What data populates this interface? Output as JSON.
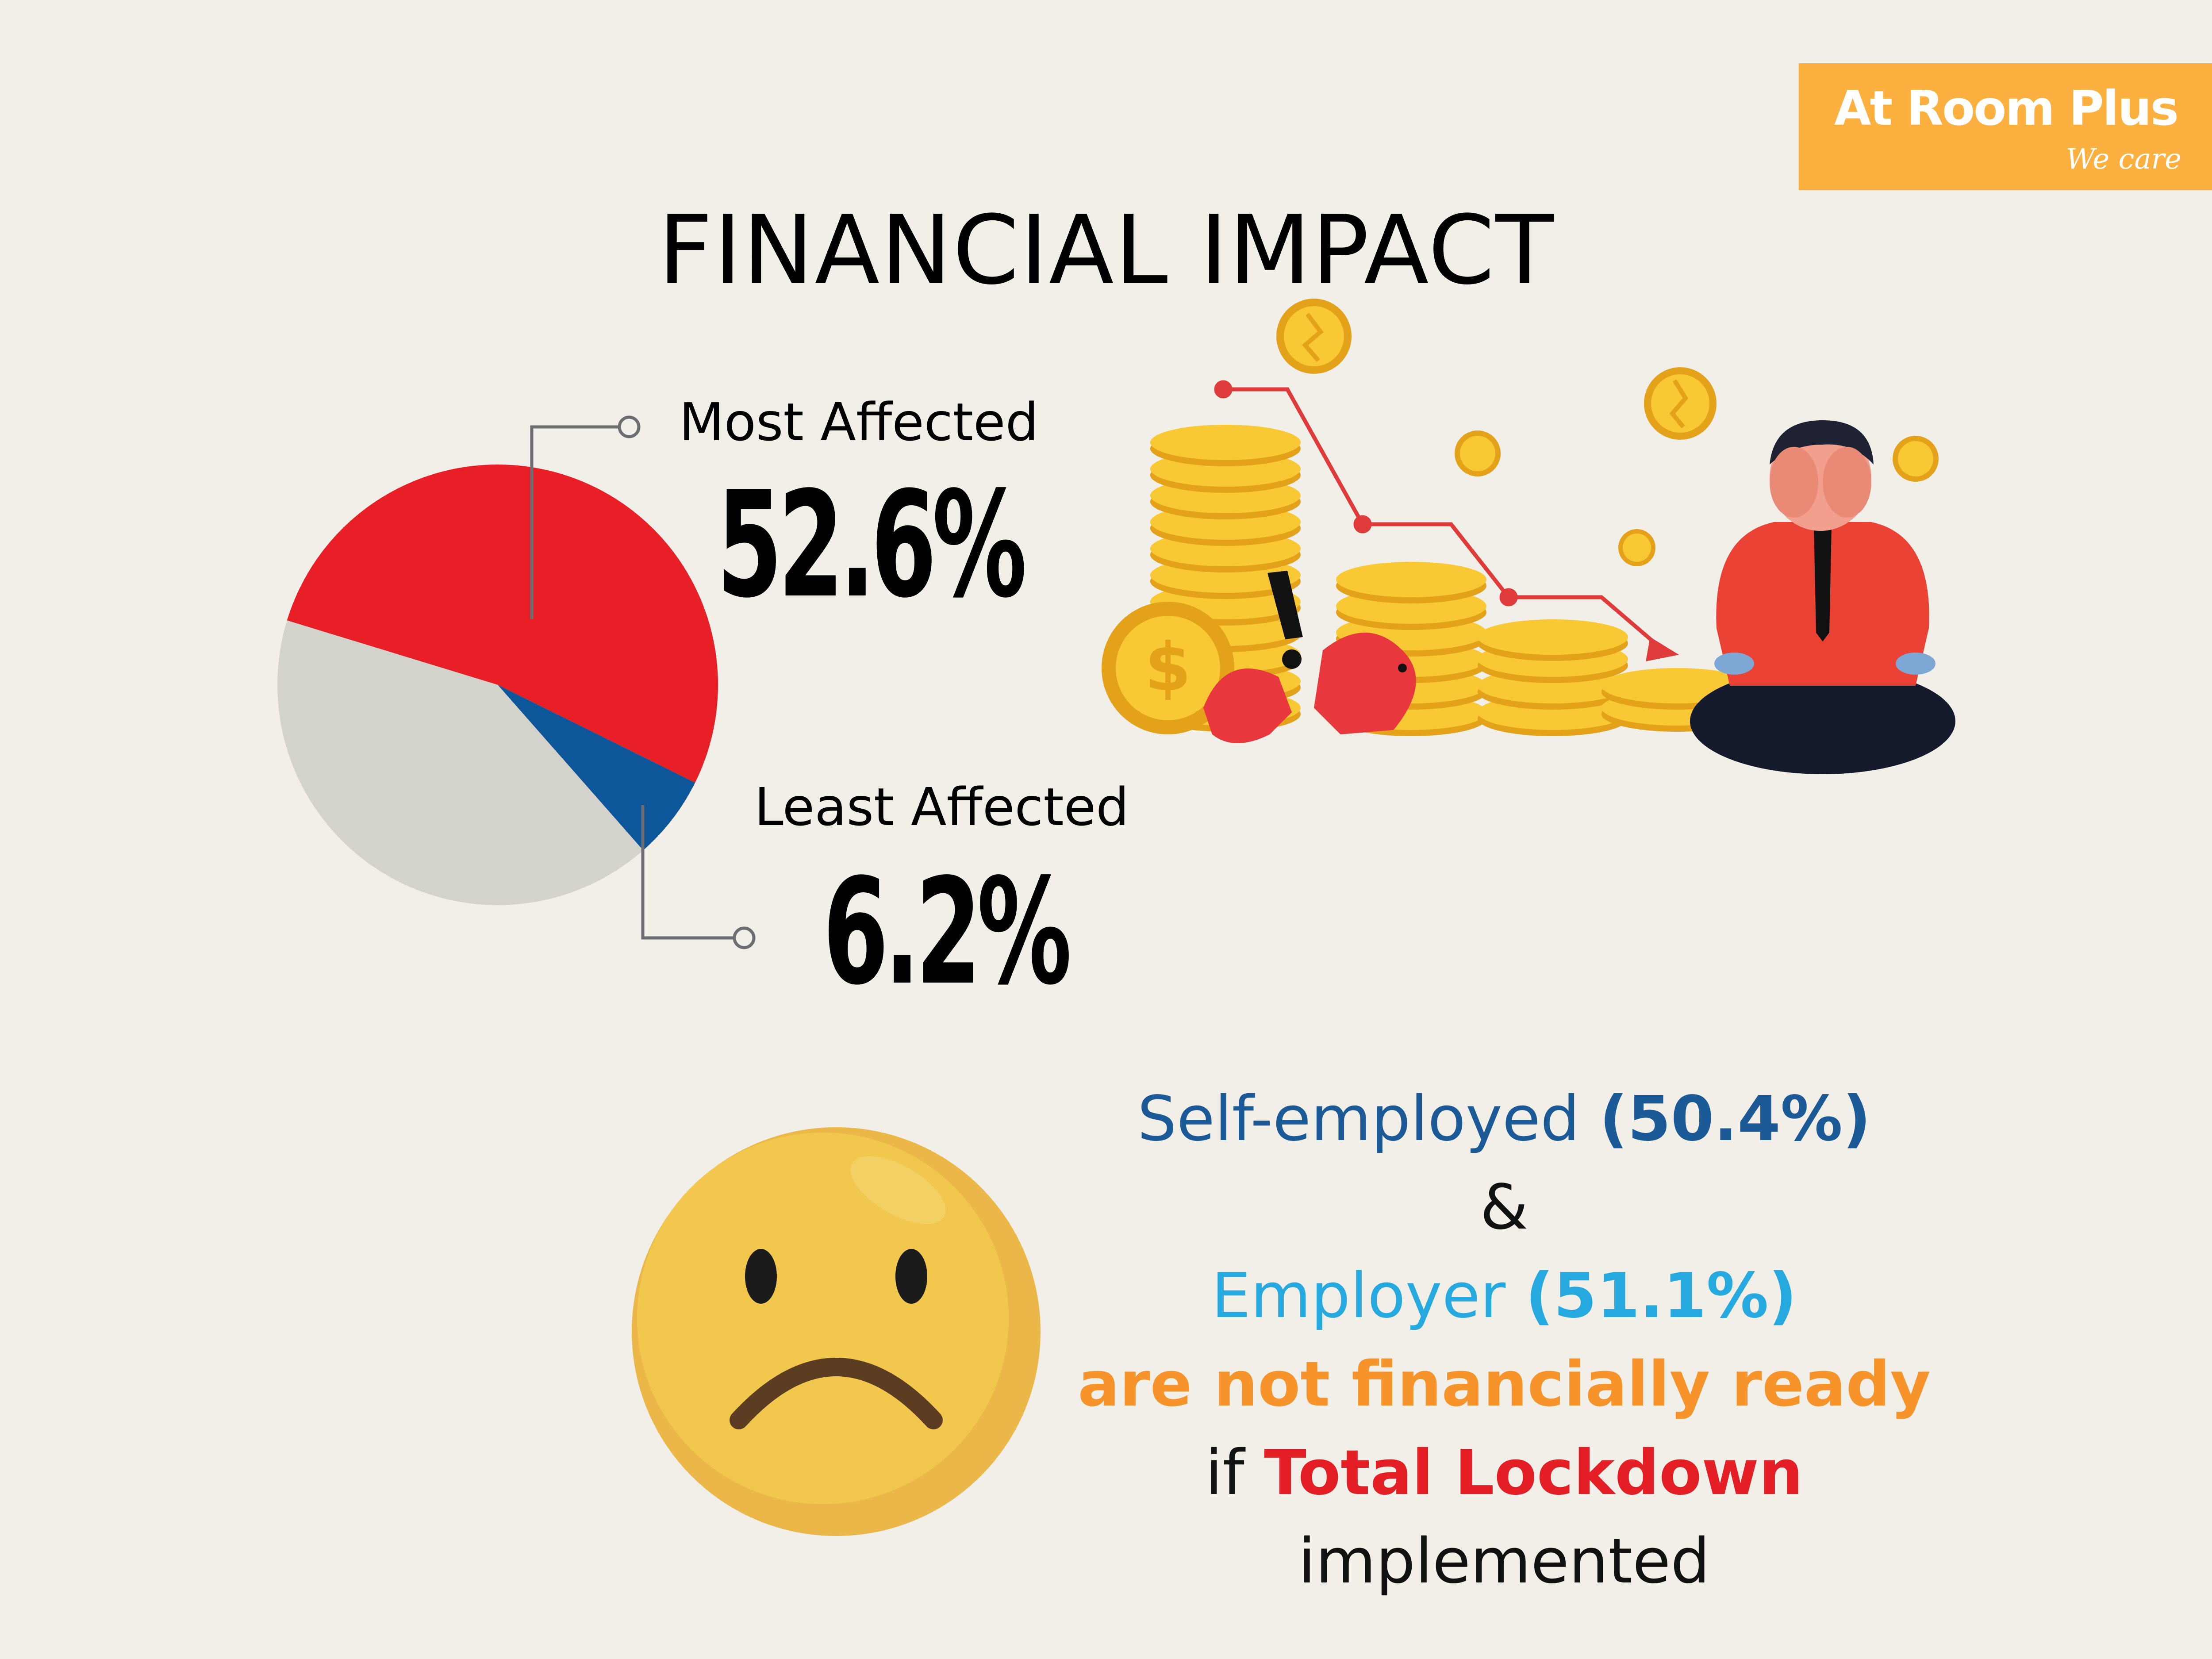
{
  "logo": {
    "brand": "At Room Plus",
    "tagline": "We care"
  },
  "title": "FINANCIAL IMPACT",
  "chart_data": {
    "type": "pie",
    "slices": [
      {
        "label": "Most Affected",
        "value": 52.6,
        "color": "#e81f27"
      },
      {
        "label": "Least Affected",
        "value": 6.2,
        "color": "#0c5699"
      },
      {
        "label": "",
        "value": 41.2,
        "color": "#d4d3cb"
      }
    ],
    "annotations": [
      {
        "label": "Most Affected",
        "value_text": "52.6%"
      },
      {
        "label": "Least Affected",
        "value_text": "6.2%"
      }
    ]
  },
  "summary": {
    "self_employed_label": "Self-employed",
    "self_employed_value": "(50.4%)",
    "ampersand": "&",
    "employer_label": "Employer",
    "employer_value": "(51.1%)",
    "not_ready": "are not financially ready",
    "if_word": "if",
    "lockdown": "Total Lockdown",
    "implemented": "implemented"
  },
  "colors": {
    "background": "#f1efe7",
    "accent_orange": "#fbb040",
    "most_red": "#e81f27",
    "least_blue": "#0c5699",
    "remainder_grey": "#d4d3cb",
    "coin_gold": "#f7c52c",
    "emoji_yellow": "#f1c84d"
  },
  "icons": [
    "crying-businessman-illustration",
    "coin-stacks-icon",
    "broken-coin-icon",
    "broken-piggy-bank-icon",
    "downtrend-arrow-icon",
    "exclamation-icon",
    "sad-face-emoji-icon"
  ]
}
